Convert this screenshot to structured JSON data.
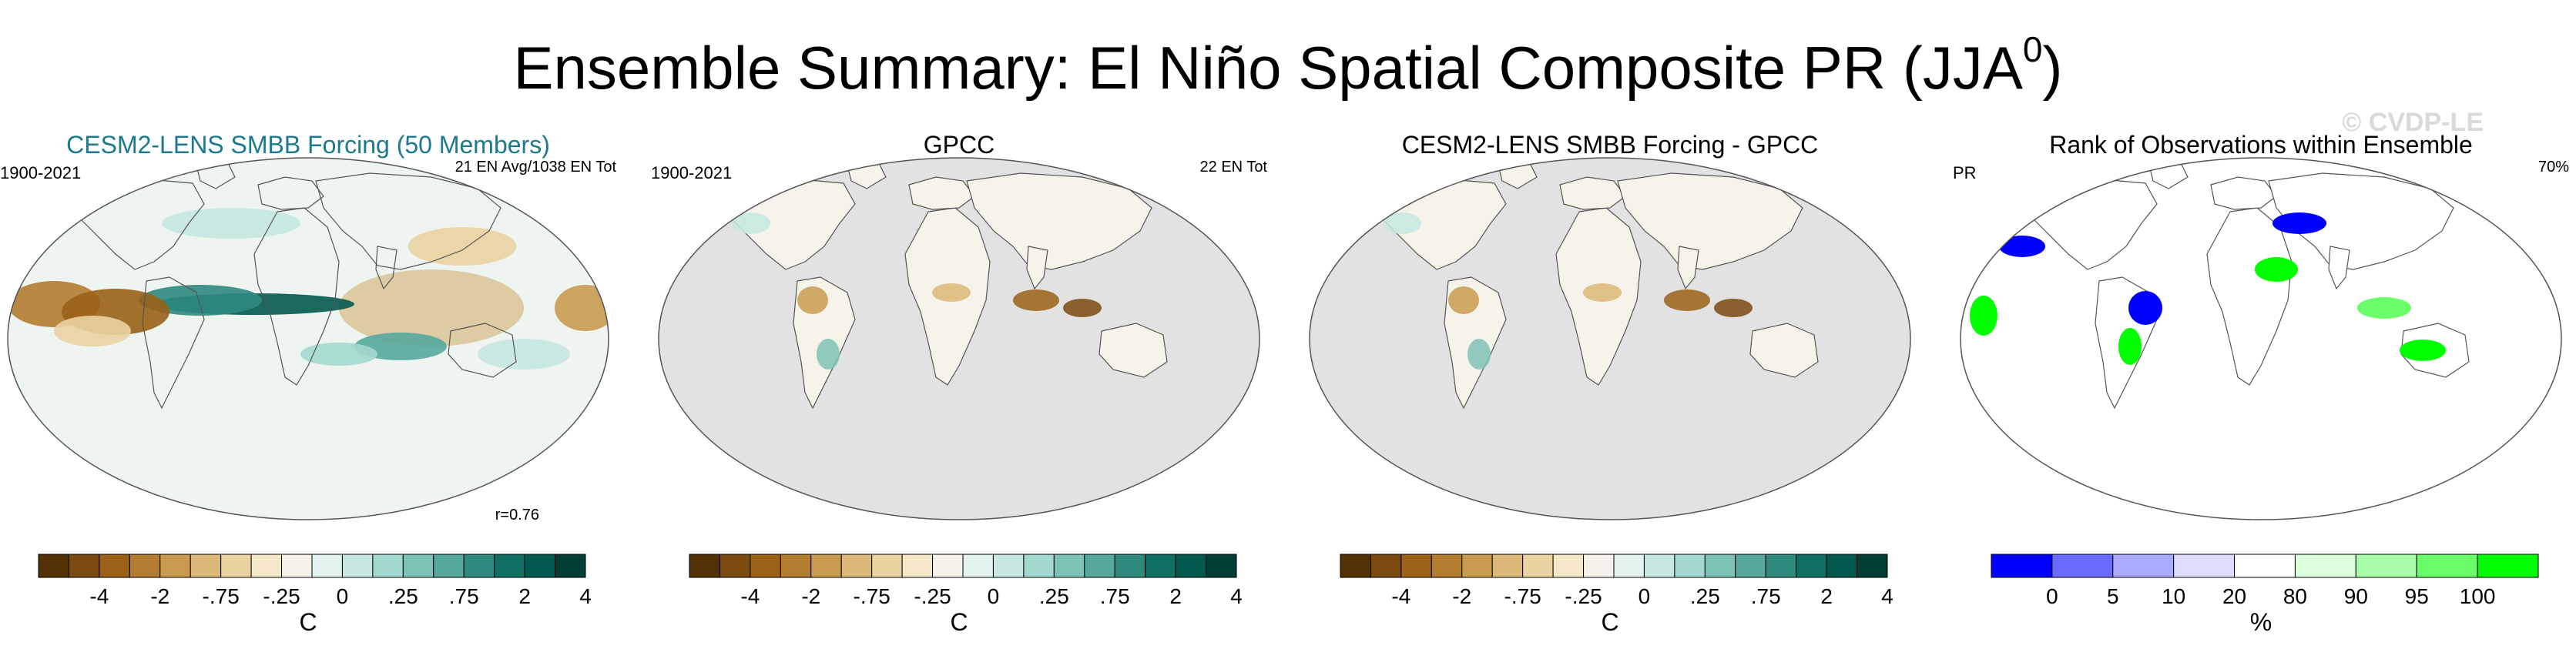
{
  "title": "Ensemble Summary: El Niño Spatial Composite PR (JJA",
  "title_superscript": "0",
  "title_close": ")",
  "watermark": "© CVDP-LE",
  "colors": {
    "brown_to_teal": [
      "#543005",
      "#7a4a0e",
      "#9a6117",
      "#b37d30",
      "#c99b4f",
      "#dcb978",
      "#ead3a1",
      "#f5e8c8",
      "#f4f2ea",
      "#e2f2ef",
      "#c6e8e1",
      "#a2d8cd",
      "#7cc2b5",
      "#55a89b",
      "#2f8a7e",
      "#106f63",
      "#02594e",
      "#013d34"
    ],
    "rank": [
      "#0000ff",
      "#6a6aff",
      "#a9a9ff",
      "#dcdcff",
      "#ffffff",
      "#dcffdc",
      "#a9ffa9",
      "#6aff6a",
      "#00ff00"
    ],
    "ocean_masked": "#e2e2e2",
    "land_masked": "#ffffff"
  },
  "chart_data": [
    {
      "type": "heatmap",
      "title": "CESM2-LENS SMBB Forcing (50 Members)",
      "period": "1900-2021",
      "annotation": "21 EN Avg/1038 EN Tot",
      "correlation": "r=0.76",
      "colorbar_ticks": [
        "-4",
        "-2",
        "-.75",
        "-.25",
        "0",
        ".25",
        ".75",
        "2",
        "4"
      ],
      "colorbar_bounds": [
        -8,
        -6,
        -4,
        -3,
        -2,
        -1,
        -0.75,
        -0.5,
        -0.25,
        0,
        0.25,
        0.5,
        0.75,
        1,
        2,
        3,
        4,
        6,
        8
      ],
      "units": "C"
    },
    {
      "type": "heatmap",
      "title": "GPCC",
      "period": "1900-2021",
      "annotation": "22 EN Tot",
      "colorbar_ticks": [
        "-4",
        "-2",
        "-.75",
        "-.25",
        "0",
        ".25",
        ".75",
        "2",
        "4"
      ],
      "units": "C"
    },
    {
      "type": "heatmap",
      "title": "CESM2-LENS SMBB Forcing - GPCC",
      "colorbar_ticks": [
        "-4",
        "-2",
        "-.75",
        "-.25",
        "0",
        ".25",
        ".75",
        "2",
        "4"
      ],
      "units": "C"
    },
    {
      "type": "heatmap",
      "title": "Rank of Observations within Ensemble",
      "variable": "PR",
      "annotation": "70%",
      "colorbar_ticks": [
        "0",
        "5",
        "10",
        "20",
        "80",
        "90",
        "95",
        "100"
      ],
      "units": "%"
    }
  ]
}
